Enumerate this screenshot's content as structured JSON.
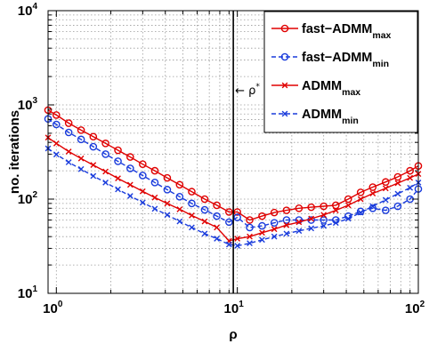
{
  "chart_data": {
    "type": "line",
    "xscale": "log",
    "yscale": "log",
    "xlim": [
      0.9,
      100
    ],
    "ylim": [
      10,
      10000
    ],
    "xlabel": "ρ",
    "ylabel": "no. iterations",
    "x_ticks": [
      {
        "base": "10",
        "exp": "0",
        "value": 1
      },
      {
        "base": "10",
        "exp": "1",
        "value": 10
      },
      {
        "base": "10",
        "exp": "2",
        "value": 100
      }
    ],
    "y_ticks": [
      {
        "base": "10",
        "exp": "1",
        "value": 10
      },
      {
        "base": "10",
        "exp": "2",
        "value": 100
      },
      {
        "base": "10",
        "exp": "3",
        "value": 1000
      },
      {
        "base": "10",
        "exp": "4",
        "value": 10000
      }
    ],
    "grid": true,
    "legend_position": "top-right",
    "vline": {
      "x": 9.5,
      "label": "← ρ",
      "label_sup": "*"
    },
    "series": [
      {
        "name": "fast−ADMM",
        "sub": "max",
        "color": "#e00000",
        "dash": "solid",
        "marker": "circle",
        "x": [
          0.9,
          1.0,
          1.17,
          1.37,
          1.6,
          1.87,
          2.19,
          2.56,
          3.0,
          3.5,
          4.1,
          4.8,
          5.6,
          6.6,
          7.7,
          9.0,
          10.0,
          11.7,
          13.7,
          16.0,
          18.7,
          21.9,
          25.6,
          30.0,
          35.0,
          41.0,
          48.0,
          56.0,
          66.0,
          77.0,
          90.0,
          100.0
        ],
        "y": [
          880,
          780,
          640,
          540,
          460,
          390,
          330,
          280,
          235,
          200,
          168,
          142,
          120,
          100,
          86,
          73,
          73,
          60,
          66,
          72,
          76,
          80,
          82,
          84,
          86,
          100,
          118,
          134,
          152,
          172,
          200,
          225
        ]
      },
      {
        "name": "fast−ADMM",
        "sub": "min",
        "color": "#1a3cdc",
        "dash": "dashed",
        "marker": "circle",
        "x": [
          0.9,
          1.0,
          1.17,
          1.37,
          1.6,
          1.87,
          2.19,
          2.56,
          3.0,
          3.5,
          4.1,
          4.8,
          5.6,
          6.6,
          7.7,
          9.0,
          10.0,
          11.7,
          13.7,
          16.0,
          18.7,
          21.9,
          25.6,
          30.0,
          35.0,
          41.0,
          48.0,
          56.0,
          66.0,
          77.0,
          90.0,
          100.0
        ],
        "y": [
          710,
          620,
          510,
          430,
          360,
          300,
          252,
          212,
          178,
          150,
          126,
          106,
          90,
          77,
          66,
          57,
          64,
          50,
          52,
          56,
          60,
          60,
          60,
          60,
          60,
          66,
          74,
          80,
          76,
          84,
          100,
          128
        ]
      },
      {
        "name": "ADMM",
        "sub": "max",
        "color": "#e00000",
        "dash": "solid",
        "marker": "x",
        "x": [
          0.9,
          1.0,
          1.17,
          1.37,
          1.6,
          1.87,
          2.19,
          2.56,
          3.0,
          3.5,
          4.1,
          4.8,
          5.6,
          6.6,
          7.7,
          9.0,
          10.0,
          11.7,
          13.7,
          16.0,
          18.7,
          21.9,
          25.6,
          30.0,
          35.0,
          41.0,
          48.0,
          56.0,
          66.0,
          77.0,
          90.0,
          100.0
        ],
        "y": [
          450,
          390,
          320,
          270,
          230,
          196,
          166,
          142,
          121,
          104,
          90,
          78,
          67,
          58,
          50,
          36,
          38,
          40,
          44,
          48,
          53,
          57,
          62,
          68,
          76,
          86,
          100,
          115,
          130,
          148,
          168,
          185
        ]
      },
      {
        "name": "ADMM",
        "sub": "min",
        "color": "#1a3cdc",
        "dash": "dashed",
        "marker": "x",
        "x": [
          0.9,
          1.0,
          1.17,
          1.37,
          1.6,
          1.87,
          2.19,
          2.56,
          3.0,
          3.5,
          4.1,
          4.8,
          5.6,
          6.6,
          7.7,
          9.0,
          10.0,
          11.7,
          13.7,
          16.0,
          18.7,
          21.9,
          25.6,
          30.0,
          35.0,
          41.0,
          48.0,
          56.0,
          66.0,
          77.0,
          90.0,
          100.0
        ],
        "y": [
          345,
          298,
          246,
          208,
          176,
          150,
          127,
          108,
          92,
          79,
          68,
          58,
          50,
          43,
          38,
          33,
          32,
          34,
          37,
          40,
          43,
          46,
          49,
          52,
          56,
          62,
          72,
          84,
          98,
          114,
          132,
          150
        ]
      }
    ]
  }
}
